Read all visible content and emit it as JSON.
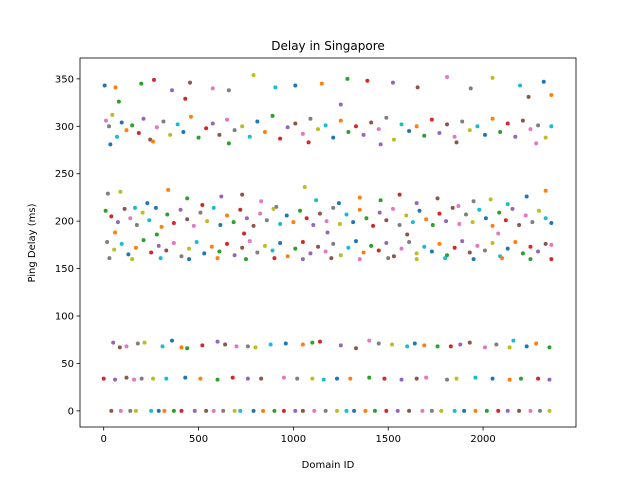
{
  "chart_data": {
    "type": "scatter",
    "title": "Delay in Singapore",
    "xlabel": "Domain ID",
    "ylabel": "Ping Delay (ms)",
    "xlim": [
      -125,
      2490
    ],
    "ylim": [
      -17,
      372
    ],
    "xticks": [
      0,
      500,
      1000,
      1500,
      2000
    ],
    "yticks": [
      0,
      50,
      100,
      150,
      200,
      250,
      300,
      350
    ],
    "grid": false,
    "palette": [
      "#1f77b4",
      "#ff7f0e",
      "#2ca02c",
      "#d62728",
      "#9467bd",
      "#8c564b",
      "#e377c2",
      "#7f7f7f",
      "#bcbd22",
      "#17becf"
    ],
    "points": [
      [
        5,
        343
      ],
      [
        62,
        341
      ],
      [
        198,
        345
      ],
      [
        265,
        349
      ],
      [
        360,
        338
      ],
      [
        455,
        346
      ],
      [
        575,
        340
      ],
      [
        660,
        338
      ],
      [
        790,
        354
      ],
      [
        905,
        341
      ],
      [
        1010,
        343
      ],
      [
        1150,
        345
      ],
      [
        1285,
        350
      ],
      [
        1390,
        348
      ],
      [
        1525,
        346
      ],
      [
        1655,
        341
      ],
      [
        1810,
        352
      ],
      [
        1935,
        340
      ],
      [
        2050,
        351
      ],
      [
        2195,
        343
      ],
      [
        2320,
        347
      ],
      [
        2360,
        333
      ],
      [
        80,
        326
      ],
      [
        430,
        329
      ],
      [
        1250,
        323
      ],
      [
        2240,
        331
      ],
      [
        12,
        306
      ],
      [
        28,
        300
      ],
      [
        45,
        312
      ],
      [
        70,
        289
      ],
      [
        95,
        304
      ],
      [
        120,
        296
      ],
      [
        150,
        301
      ],
      [
        185,
        293
      ],
      [
        210,
        308
      ],
      [
        245,
        286
      ],
      [
        280,
        299
      ],
      [
        315,
        305
      ],
      [
        350,
        291
      ],
      [
        390,
        302
      ],
      [
        420,
        294
      ],
      [
        460,
        310
      ],
      [
        500,
        288
      ],
      [
        540,
        298
      ],
      [
        575,
        303
      ],
      [
        610,
        291
      ],
      [
        650,
        307
      ],
      [
        690,
        296
      ],
      [
        730,
        300
      ],
      [
        770,
        289
      ],
      [
        810,
        305
      ],
      [
        850,
        294
      ],
      [
        890,
        311
      ],
      [
        930,
        287
      ],
      [
        970,
        299
      ],
      [
        1010,
        303
      ],
      [
        1050,
        292
      ],
      [
        1090,
        308
      ],
      [
        1130,
        297
      ],
      [
        1170,
        301
      ],
      [
        1210,
        288
      ],
      [
        1250,
        306
      ],
      [
        1290,
        294
      ],
      [
        1330,
        300
      ],
      [
        1370,
        291
      ],
      [
        1410,
        304
      ],
      [
        1450,
        297
      ],
      [
        1490,
        309
      ],
      [
        1530,
        286
      ],
      [
        1570,
        302
      ],
      [
        1610,
        295
      ],
      [
        1650,
        300
      ],
      [
        1690,
        290
      ],
      [
        1730,
        307
      ],
      [
        1770,
        293
      ],
      [
        1810,
        302
      ],
      [
        1850,
        289
      ],
      [
        1890,
        305
      ],
      [
        1930,
        296
      ],
      [
        1970,
        300
      ],
      [
        2010,
        291
      ],
      [
        2050,
        308
      ],
      [
        2090,
        294
      ],
      [
        2130,
        303
      ],
      [
        2170,
        289
      ],
      [
        2210,
        306
      ],
      [
        2250,
        297
      ],
      [
        2290,
        301
      ],
      [
        2330,
        288
      ],
      [
        2360,
        300
      ],
      [
        35,
        281
      ],
      [
        260,
        284
      ],
      [
        660,
        282
      ],
      [
        1080,
        283
      ],
      [
        1460,
        281
      ],
      [
        1860,
        283
      ],
      [
        2280,
        282
      ],
      [
        22,
        229
      ],
      [
        88,
        231
      ],
      [
        165,
        214
      ],
      [
        230,
        219
      ],
      [
        340,
        233
      ],
      [
        440,
        224
      ],
      [
        520,
        217
      ],
      [
        620,
        226
      ],
      [
        730,
        228
      ],
      [
        830,
        221
      ],
      [
        910,
        215
      ],
      [
        1060,
        236
      ],
      [
        1120,
        222
      ],
      [
        1240,
        219
      ],
      [
        1350,
        225
      ],
      [
        1460,
        222
      ],
      [
        1560,
        228
      ],
      [
        1650,
        219
      ],
      [
        1760,
        224
      ],
      [
        1870,
        216
      ],
      [
        1950,
        221
      ],
      [
        2040,
        223
      ],
      [
        2130,
        218
      ],
      [
        2230,
        226
      ],
      [
        2330,
        232
      ],
      [
        10,
        211
      ],
      [
        40,
        205
      ],
      [
        75,
        199
      ],
      [
        110,
        213
      ],
      [
        140,
        203
      ],
      [
        175,
        196
      ],
      [
        205,
        209
      ],
      [
        240,
        201
      ],
      [
        275,
        214
      ],
      [
        305,
        194
      ],
      [
        335,
        207
      ],
      [
        370,
        198
      ],
      [
        405,
        212
      ],
      [
        440,
        202
      ],
      [
        475,
        195
      ],
      [
        510,
        209
      ],
      [
        545,
        200
      ],
      [
        580,
        214
      ],
      [
        615,
        196
      ],
      [
        650,
        206
      ],
      [
        685,
        199
      ],
      [
        720,
        212
      ],
      [
        755,
        203
      ],
      [
        790,
        195
      ],
      [
        825,
        208
      ],
      [
        860,
        201
      ],
      [
        895,
        213
      ],
      [
        930,
        197
      ],
      [
        965,
        206
      ],
      [
        1000,
        199
      ],
      [
        1035,
        211
      ],
      [
        1070,
        203
      ],
      [
        1105,
        196
      ],
      [
        1140,
        208
      ],
      [
        1175,
        200
      ],
      [
        1210,
        214
      ],
      [
        1245,
        197
      ],
      [
        1280,
        207
      ],
      [
        1315,
        199
      ],
      [
        1350,
        212
      ],
      [
        1385,
        203
      ],
      [
        1420,
        195
      ],
      [
        1455,
        209
      ],
      [
        1490,
        201
      ],
      [
        1525,
        213
      ],
      [
        1560,
        196
      ],
      [
        1595,
        206
      ],
      [
        1630,
        199
      ],
      [
        1665,
        211
      ],
      [
        1700,
        202
      ],
      [
        1735,
        196
      ],
      [
        1770,
        208
      ],
      [
        1805,
        200
      ],
      [
        1840,
        214
      ],
      [
        1875,
        197
      ],
      [
        1910,
        207
      ],
      [
        1945,
        199
      ],
      [
        1980,
        212
      ],
      [
        2015,
        203
      ],
      [
        2050,
        195
      ],
      [
        2085,
        209
      ],
      [
        2120,
        201
      ],
      [
        2155,
        213
      ],
      [
        2190,
        196
      ],
      [
        2225,
        206
      ],
      [
        2260,
        199
      ],
      [
        2295,
        211
      ],
      [
        2330,
        203
      ],
      [
        2360,
        198
      ],
      [
        60,
        188
      ],
      [
        280,
        186
      ],
      [
        740,
        187
      ],
      [
        1180,
        188
      ],
      [
        1600,
        186
      ],
      [
        2080,
        187
      ],
      [
        18,
        178
      ],
      [
        55,
        170
      ],
      [
        95,
        176
      ],
      [
        130,
        165
      ],
      [
        170,
        172
      ],
      [
        210,
        180
      ],
      [
        250,
        167
      ],
      [
        290,
        174
      ],
      [
        330,
        169
      ],
      [
        370,
        177
      ],
      [
        410,
        163
      ],
      [
        450,
        171
      ],
      [
        490,
        178
      ],
      [
        530,
        166
      ],
      [
        570,
        173
      ],
      [
        610,
        168
      ],
      [
        650,
        176
      ],
      [
        690,
        164
      ],
      [
        730,
        172
      ],
      [
        770,
        179
      ],
      [
        810,
        167
      ],
      [
        850,
        174
      ],
      [
        890,
        169
      ],
      [
        930,
        177
      ],
      [
        970,
        163
      ],
      [
        1010,
        171
      ],
      [
        1050,
        178
      ],
      [
        1090,
        166
      ],
      [
        1130,
        173
      ],
      [
        1170,
        168
      ],
      [
        1210,
        176
      ],
      [
        1250,
        164
      ],
      [
        1290,
        172
      ],
      [
        1330,
        179
      ],
      [
        1370,
        167
      ],
      [
        1410,
        174
      ],
      [
        1450,
        169
      ],
      [
        1490,
        177
      ],
      [
        1530,
        163
      ],
      [
        1570,
        171
      ],
      [
        1610,
        178
      ],
      [
        1650,
        166
      ],
      [
        1690,
        173
      ],
      [
        1730,
        168
      ],
      [
        1770,
        176
      ],
      [
        1810,
        164
      ],
      [
        1850,
        172
      ],
      [
        1890,
        179
      ],
      [
        1930,
        167
      ],
      [
        1970,
        174
      ],
      [
        2010,
        169
      ],
      [
        2050,
        177
      ],
      [
        2090,
        163
      ],
      [
        2130,
        171
      ],
      [
        2170,
        178
      ],
      [
        2210,
        166
      ],
      [
        2250,
        173
      ],
      [
        2290,
        168
      ],
      [
        2330,
        176
      ],
      [
        2360,
        175
      ],
      [
        30,
        161
      ],
      [
        150,
        160
      ],
      [
        300,
        161
      ],
      [
        450,
        160
      ],
      [
        600,
        161
      ],
      [
        750,
        160
      ],
      [
        900,
        161
      ],
      [
        1050,
        160
      ],
      [
        1200,
        161
      ],
      [
        1350,
        160
      ],
      [
        1500,
        161
      ],
      [
        1650,
        160
      ],
      [
        1800,
        161
      ],
      [
        1950,
        160
      ],
      [
        2100,
        161
      ],
      [
        2250,
        160
      ],
      [
        2360,
        160
      ],
      [
        50,
        72
      ],
      [
        85,
        67
      ],
      [
        120,
        68
      ],
      [
        180,
        71
      ],
      [
        215,
        72
      ],
      [
        310,
        68
      ],
      [
        360,
        74
      ],
      [
        410,
        67
      ],
      [
        440,
        66
      ],
      [
        520,
        69
      ],
      [
        600,
        73
      ],
      [
        640,
        70
      ],
      [
        700,
        68
      ],
      [
        760,
        68
      ],
      [
        800,
        67
      ],
      [
        880,
        70
      ],
      [
        960,
        71
      ],
      [
        1050,
        70
      ],
      [
        1100,
        72
      ],
      [
        1140,
        73
      ],
      [
        1250,
        69
      ],
      [
        1330,
        66
      ],
      [
        1400,
        74
      ],
      [
        1450,
        71
      ],
      [
        1520,
        70
      ],
      [
        1600,
        68
      ],
      [
        1640,
        71
      ],
      [
        1690,
        69
      ],
      [
        1760,
        68
      ],
      [
        1830,
        68
      ],
      [
        1880,
        70
      ],
      [
        1930,
        72
      ],
      [
        2010,
        67
      ],
      [
        2070,
        70
      ],
      [
        2140,
        67
      ],
      [
        2160,
        74
      ],
      [
        2230,
        68
      ],
      [
        2280,
        71
      ],
      [
        2350,
        67
      ],
      [
        0,
        34
      ],
      [
        60,
        33
      ],
      [
        120,
        35
      ],
      [
        160,
        33
      ],
      [
        200,
        34
      ],
      [
        260,
        34
      ],
      [
        330,
        34
      ],
      [
        430,
        35
      ],
      [
        510,
        34
      ],
      [
        600,
        33
      ],
      [
        680,
        35
      ],
      [
        760,
        34
      ],
      [
        830,
        34
      ],
      [
        950,
        35
      ],
      [
        1020,
        34
      ],
      [
        1100,
        34
      ],
      [
        1160,
        33
      ],
      [
        1230,
        34
      ],
      [
        1300,
        34
      ],
      [
        1400,
        35
      ],
      [
        1480,
        34
      ],
      [
        1570,
        33
      ],
      [
        1650,
        34
      ],
      [
        1700,
        35
      ],
      [
        1810,
        33
      ],
      [
        1860,
        34
      ],
      [
        1960,
        35
      ],
      [
        2050,
        34
      ],
      [
        2140,
        33
      ],
      [
        2200,
        34
      ],
      [
        2290,
        34
      ],
      [
        2350,
        33
      ],
      [
        40,
        0
      ],
      [
        90,
        0
      ],
      [
        140,
        0
      ],
      [
        170,
        0
      ],
      [
        250,
        0
      ],
      [
        290,
        0
      ],
      [
        320,
        0
      ],
      [
        370,
        0
      ],
      [
        410,
        0
      ],
      [
        480,
        0
      ],
      [
        540,
        0
      ],
      [
        580,
        0
      ],
      [
        630,
        0
      ],
      [
        690,
        0
      ],
      [
        720,
        0
      ],
      [
        790,
        0
      ],
      [
        840,
        0
      ],
      [
        900,
        0
      ],
      [
        950,
        0
      ],
      [
        1010,
        0
      ],
      [
        1050,
        0
      ],
      [
        1110,
        0
      ],
      [
        1170,
        0
      ],
      [
        1230,
        0
      ],
      [
        1280,
        0
      ],
      [
        1320,
        0
      ],
      [
        1380,
        0
      ],
      [
        1430,
        0
      ],
      [
        1490,
        0
      ],
      [
        1550,
        0
      ],
      [
        1610,
        0
      ],
      [
        1680,
        0
      ],
      [
        1730,
        0
      ],
      [
        1780,
        0
      ],
      [
        1850,
        0
      ],
      [
        1900,
        0
      ],
      [
        1960,
        0
      ],
      [
        2020,
        0
      ],
      [
        2080,
        0
      ],
      [
        2130,
        0
      ],
      [
        2190,
        0
      ],
      [
        2250,
        0
      ],
      [
        2300,
        0
      ],
      [
        2350,
        0
      ]
    ]
  }
}
